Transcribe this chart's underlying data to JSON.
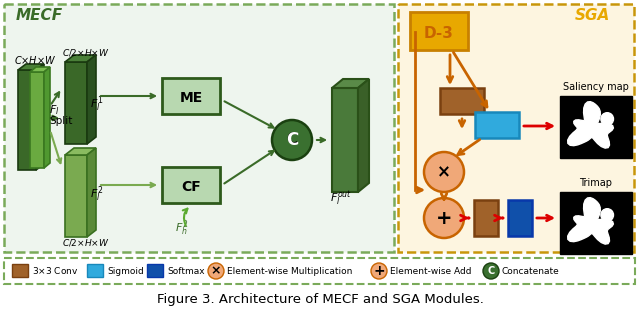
{
  "title": "Figure 3. Architecture of MECF and SGA Modules.",
  "mecf_label": "MECF",
  "sga_label": "SGA",
  "bg_color": "#ffffff",
  "mecf_bg": "#eef5ee",
  "sga_bg": "#fdf5e0",
  "mecf_border": "#7aaa5a",
  "sga_border": "#c8960a",
  "dark_green": "#2d5a1b",
  "dark_green2": "#3a6b28",
  "light_green_block": "#7aaa50",
  "me_cf_fill": "#5a8a50",
  "me_cf_border": "#2d5a1b",
  "concat_fill": "#3a7030",
  "out_block_fill": "#4a7a3a",
  "orange": "#c86400",
  "gold_fill": "#e8a800",
  "gold_border": "#c88000",
  "brown": "#a0622a",
  "brown_border": "#7a4010",
  "blue_light": "#30aadd",
  "blue_dark": "#1050aa",
  "peach": "#f0a878",
  "red_arrow": "#dd0000"
}
